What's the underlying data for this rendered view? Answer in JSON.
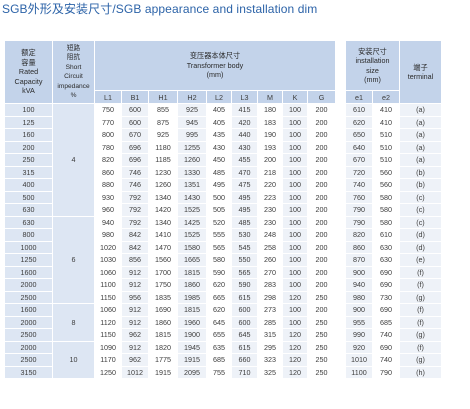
{
  "title": "SGB外形及安装尺寸/SGB appearance and installation dim",
  "headers": {
    "rated_capacity": "额定\n容量\nRated\nCapacity\nkVA",
    "impedance": "短路\n阻抗\nShort\nCircuit\nimpedance\n%",
    "transformer_body": "变压器本体尺寸\nTransformer body\n(mm)",
    "installation": "安装尺寸\ninstallation\nsize\n(mm)",
    "terminal": "端子\nterminal",
    "body_cols": [
      "L1",
      "B1",
      "H1",
      "H2",
      "L2",
      "L3",
      "M",
      "K",
      "G"
    ],
    "install_cols": [
      "e1",
      "e2"
    ]
  },
  "impedance_groups": [
    {
      "value": "4",
      "rows": 9
    },
    {
      "value": "6",
      "rows": 7
    },
    {
      "value": "8",
      "rows": 3
    },
    {
      "value": "10",
      "rows": 3
    }
  ],
  "rows": [
    {
      "kva": "100",
      "vals": [
        "750",
        "600",
        "855",
        "925",
        "405",
        "415",
        "180",
        "100",
        "200"
      ],
      "e1": "610",
      "e2": "410",
      "t": "(a)"
    },
    {
      "kva": "125",
      "vals": [
        "770",
        "600",
        "875",
        "945",
        "405",
        "420",
        "183",
        "100",
        "200"
      ],
      "e1": "620",
      "e2": "410",
      "t": "(a)"
    },
    {
      "kva": "160",
      "vals": [
        "800",
        "670",
        "925",
        "995",
        "435",
        "440",
        "190",
        "100",
        "200"
      ],
      "e1": "650",
      "e2": "510",
      "t": "(a)"
    },
    {
      "kva": "200",
      "vals": [
        "780",
        "696",
        "1180",
        "1255",
        "430",
        "430",
        "193",
        "100",
        "200"
      ],
      "e1": "640",
      "e2": "510",
      "t": "(a)"
    },
    {
      "kva": "250",
      "vals": [
        "820",
        "696",
        "1185",
        "1260",
        "450",
        "455",
        "200",
        "100",
        "200"
      ],
      "e1": "670",
      "e2": "510",
      "t": "(a)"
    },
    {
      "kva": "315",
      "vals": [
        "860",
        "746",
        "1230",
        "1330",
        "485",
        "470",
        "218",
        "100",
        "200"
      ],
      "e1": "720",
      "e2": "560",
      "t": "(b)"
    },
    {
      "kva": "400",
      "vals": [
        "880",
        "746",
        "1260",
        "1351",
        "495",
        "475",
        "220",
        "100",
        "200"
      ],
      "e1": "740",
      "e2": "560",
      "t": "(b)"
    },
    {
      "kva": "500",
      "vals": [
        "930",
        "792",
        "1340",
        "1430",
        "500",
        "495",
        "223",
        "100",
        "200"
      ],
      "e1": "760",
      "e2": "580",
      "t": "(c)"
    },
    {
      "kva": "630",
      "vals": [
        "960",
        "792",
        "1420",
        "1525",
        "505",
        "495",
        "230",
        "100",
        "200"
      ],
      "e1": "790",
      "e2": "580",
      "t": "(c)"
    },
    {
      "kva": "630",
      "vals": [
        "940",
        "792",
        "1340",
        "1425",
        "520",
        "485",
        "230",
        "100",
        "200"
      ],
      "e1": "790",
      "e2": "580",
      "t": "(c)"
    },
    {
      "kva": "800",
      "vals": [
        "980",
        "842",
        "1410",
        "1525",
        "555",
        "530",
        "248",
        "100",
        "200"
      ],
      "e1": "820",
      "e2": "610",
      "t": "(d)"
    },
    {
      "kva": "1000",
      "vals": [
        "1020",
        "842",
        "1470",
        "1580",
        "565",
        "545",
        "258",
        "100",
        "200"
      ],
      "e1": "860",
      "e2": "630",
      "t": "(d)"
    },
    {
      "kva": "1250",
      "vals": [
        "1030",
        "856",
        "1560",
        "1665",
        "580",
        "550",
        "260",
        "100",
        "200"
      ],
      "e1": "870",
      "e2": "630",
      "t": "(e)"
    },
    {
      "kva": "1600",
      "vals": [
        "1060",
        "912",
        "1700",
        "1815",
        "590",
        "565",
        "270",
        "100",
        "200"
      ],
      "e1": "900",
      "e2": "690",
      "t": "(f)"
    },
    {
      "kva": "2000",
      "vals": [
        "1100",
        "912",
        "1750",
        "1860",
        "620",
        "590",
        "283",
        "100",
        "200"
      ],
      "e1": "940",
      "e2": "690",
      "t": "(f)"
    },
    {
      "kva": "2500",
      "vals": [
        "1150",
        "956",
        "1835",
        "1985",
        "665",
        "615",
        "298",
        "120",
        "250"
      ],
      "e1": "980",
      "e2": "730",
      "t": "(g)"
    },
    {
      "kva": "1600",
      "vals": [
        "1060",
        "912",
        "1690",
        "1815",
        "620",
        "600",
        "273",
        "100",
        "200"
      ],
      "e1": "900",
      "e2": "690",
      "t": "(f)"
    },
    {
      "kva": "2000",
      "vals": [
        "1120",
        "912",
        "1860",
        "1960",
        "645",
        "600",
        "285",
        "100",
        "250"
      ],
      "e1": "955",
      "e2": "685",
      "t": "(f)"
    },
    {
      "kva": "2500",
      "vals": [
        "1150",
        "962",
        "1815",
        "1900",
        "655",
        "645",
        "315",
        "120",
        "250"
      ],
      "e1": "990",
      "e2": "740",
      "t": "(g)"
    },
    {
      "kva": "2000",
      "vals": [
        "1090",
        "912",
        "1820",
        "1945",
        "635",
        "615",
        "295",
        "120",
        "250"
      ],
      "e1": "920",
      "e2": "690",
      "t": "(f)"
    },
    {
      "kva": "2500",
      "vals": [
        "1170",
        "962",
        "1775",
        "1915",
        "685",
        "660",
        "323",
        "120",
        "250"
      ],
      "e1": "1010",
      "e2": "740",
      "t": "(g)"
    },
    {
      "kva": "3150",
      "vals": [
        "1250",
        "1012",
        "1915",
        "2095",
        "755",
        "710",
        "325",
        "120",
        "250"
      ],
      "e1": "1100",
      "e2": "790",
      "t": "(h)"
    }
  ]
}
